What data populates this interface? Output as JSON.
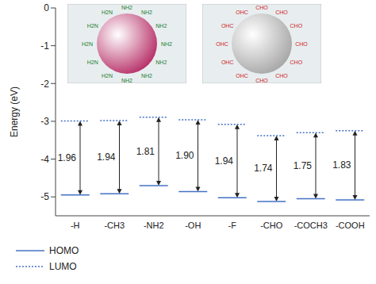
{
  "chart_data": {
    "type": "energy_level",
    "y_label": "Energy (eV)",
    "categories": [
      "-H",
      "-CH3",
      "-NH2",
      "-OH",
      "-F",
      "-CHO",
      "-COCH3",
      "-COOH"
    ],
    "series": [
      {
        "name": "HOMO",
        "color": "#4472c4",
        "line_style": "solid",
        "values": [
          -4.95,
          -4.92,
          -4.7,
          -4.86,
          -5.02,
          -5.12,
          -5.05,
          -5.08
        ]
      },
      {
        "name": "LUMO",
        "color": "#4472c4",
        "line_style": "dotted",
        "values": [
          -2.99,
          -2.98,
          -2.89,
          -2.96,
          -3.08,
          -3.38,
          -3.3,
          -3.25
        ]
      }
    ],
    "gaps": [
      1.96,
      1.94,
      1.81,
      1.9,
      1.94,
      1.74,
      1.75,
      1.83
    ],
    "gap_labels": [
      "1.96",
      "1.94",
      "1.81",
      "1.90",
      "1.94",
      "1.74",
      "1.75",
      "1.83"
    ],
    "ylim": [
      -5.5,
      0
    ],
    "yticks": [
      0,
      -1,
      -2,
      -3,
      -4,
      -5
    ],
    "legend": "bottom left",
    "insets": [
      {
        "labels": [
          "NH2",
          "H2N"
        ],
        "color": "#b8336a"
      },
      {
        "labels": [
          "CHO",
          "OHC"
        ],
        "color": "#a8a8a8"
      }
    ]
  }
}
